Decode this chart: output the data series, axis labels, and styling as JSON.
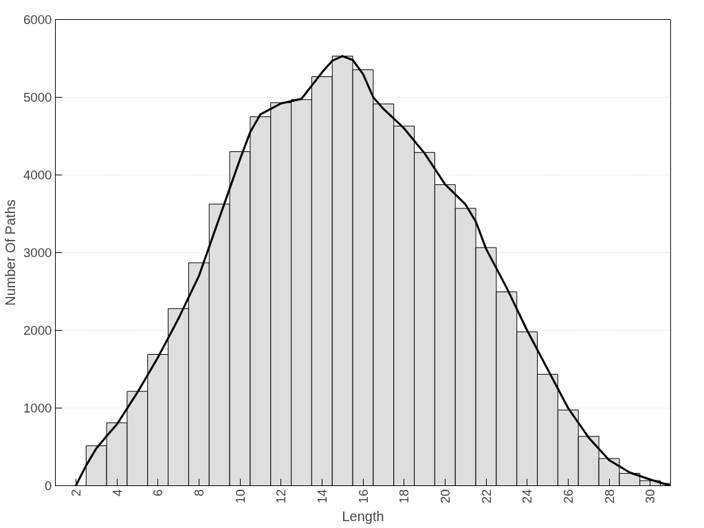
{
  "chart_data": {
    "type": "histogram",
    "xlabel": "Length",
    "ylabel": "Number Of Paths",
    "bins": [
      2.5,
      3.5,
      4.5,
      5.5,
      6.5,
      7.5,
      8.5,
      9.5,
      10.5,
      11.5,
      12.5,
      13.5,
      14.5,
      15.5,
      16.5,
      17.5,
      18.5,
      19.5,
      20.5,
      21.5,
      22.5,
      23.5,
      24.5,
      25.5,
      26.5,
      27.5,
      28.5,
      29.5,
      30.5,
      31.5
    ],
    "values": [
      515,
      810,
      1215,
      1690,
      2280,
      2870,
      3625,
      4300,
      4750,
      4930,
      4970,
      5265,
      5530,
      5355,
      4915,
      4630,
      4290,
      3875,
      3570,
      3065,
      2495,
      1980,
      1435,
      975,
      635,
      350,
      160,
      65,
      30
    ],
    "color": "#dedede",
    "series": [
      {
        "type": "line",
        "color": "#000000",
        "x": [
          2,
          2.5,
          3,
          3.5,
          4,
          5,
          6,
          7,
          8,
          9,
          10,
          10.5,
          11,
          12,
          13,
          13.5,
          14,
          14.5,
          15,
          15.5,
          16,
          16.5,
          17,
          18,
          19,
          20,
          21,
          21.5,
          22,
          23,
          24,
          25,
          26,
          27,
          28,
          29,
          30,
          31
        ],
        "values": [
          0,
          260,
          480,
          640,
          790,
          1200,
          1650,
          2150,
          2700,
          3450,
          4200,
          4550,
          4780,
          4920,
          4980,
          5150,
          5320,
          5470,
          5530,
          5480,
          5300,
          5000,
          4850,
          4600,
          4280,
          3880,
          3620,
          3400,
          3050,
          2550,
          2000,
          1500,
          1000,
          620,
          330,
          170,
          80,
          0
        ]
      }
    ],
    "xlim": [
      1,
      31
    ],
    "xticks": [
      2,
      4,
      6,
      8,
      10,
      12,
      14,
      16,
      18,
      20,
      22,
      24,
      26,
      28,
      30
    ],
    "ylim": [
      0,
      6000
    ],
    "yticks": [
      0,
      1000,
      2000,
      3000,
      4000,
      5000,
      6000
    ],
    "grid": "y"
  }
}
